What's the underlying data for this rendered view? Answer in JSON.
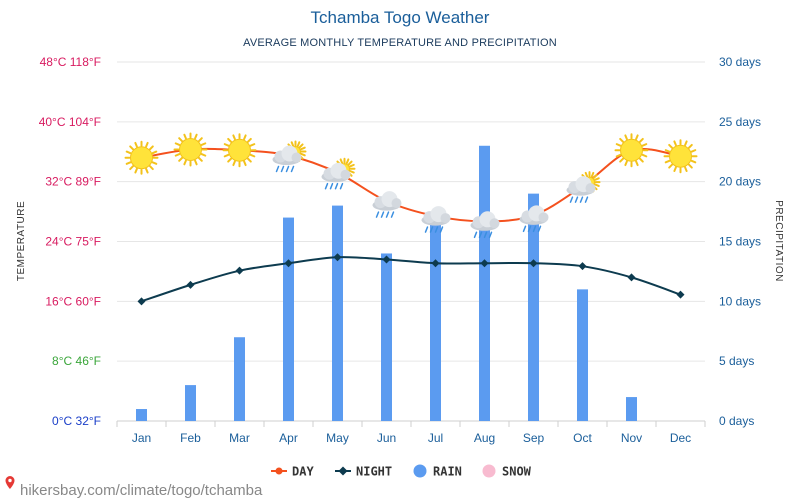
{
  "chart_data": {
    "type": "bar+line",
    "title": "Tchamba Togo Weather",
    "subtitle": "AVERAGE MONTHLY TEMPERATURE AND PRECIPITATION",
    "categories": [
      "Jan",
      "Feb",
      "Mar",
      "Apr",
      "May",
      "Jun",
      "Jul",
      "Aug",
      "Sep",
      "Oct",
      "Nov",
      "Dec"
    ],
    "y_left": {
      "label": "TEMPERATURE",
      "unit": "°C",
      "range": [
        0,
        48
      ],
      "ticks": [
        {
          "value": 0,
          "label": "0°C 32°F",
          "color": "#1a3ec8"
        },
        {
          "value": 8,
          "label": "8°C 46°F",
          "color": "#3aa63a"
        },
        {
          "value": 16,
          "label": "16°C 60°F",
          "color": "#d81b60"
        },
        {
          "value": 24,
          "label": "24°C 75°F",
          "color": "#d81b60"
        },
        {
          "value": 32,
          "label": "32°C 89°F",
          "color": "#d81b60"
        },
        {
          "value": 40,
          "label": "40°C 104°F",
          "color": "#d81b60"
        },
        {
          "value": 48,
          "label": "48°C 118°F",
          "color": "#d81b60"
        }
      ]
    },
    "y_right": {
      "label": "PRECIPITATION",
      "unit": "days",
      "range": [
        0,
        30
      ],
      "ticks": [
        {
          "value": 0,
          "label": "0 days"
        },
        {
          "value": 5,
          "label": "5 days"
        },
        {
          "value": 10,
          "label": "10 days"
        },
        {
          "value": 15,
          "label": "15 days"
        },
        {
          "value": 20,
          "label": "20 days"
        },
        {
          "value": 25,
          "label": "25 days"
        },
        {
          "value": 30,
          "label": "30 days"
        }
      ]
    },
    "series": [
      {
        "name": "DAY",
        "kind": "line",
        "axis": "left",
        "color": "#f4511e",
        "values": [
          35.2,
          36.3,
          36.2,
          35.5,
          33.2,
          29.4,
          27.4,
          26.7,
          27.5,
          31.4,
          36.2,
          35.4
        ]
      },
      {
        "name": "NIGHT",
        "kind": "line",
        "axis": "left",
        "color": "#0d3b4f",
        "values": [
          16.0,
          18.2,
          20.1,
          21.1,
          21.9,
          21.6,
          21.1,
          21.1,
          21.1,
          20.7,
          19.2,
          16.9
        ]
      },
      {
        "name": "RAIN",
        "kind": "bar",
        "axis": "right",
        "color": "#5b9bf0",
        "values": [
          1,
          3,
          7,
          17,
          18,
          14,
          17,
          23,
          19,
          11,
          2,
          0
        ]
      },
      {
        "name": "SNOW",
        "kind": "bar",
        "axis": "right",
        "color": "#f8bbd0",
        "values": [
          0,
          0,
          0,
          0,
          0,
          0,
          0,
          0,
          0,
          0,
          0,
          0
        ]
      }
    ],
    "weather_icons": [
      "sun-icon",
      "sun-icon",
      "sun-icon",
      "rain-sun-icon",
      "rain-sun-icon",
      "rain-icon",
      "rain-icon",
      "rain-icon",
      "rain-icon",
      "rain-sun-icon",
      "sun-icon",
      "sun-icon"
    ],
    "legend": {
      "position": "bottom-center"
    },
    "grid": true
  },
  "watermark": "hikersbay.com/climate/togo/tchamba"
}
